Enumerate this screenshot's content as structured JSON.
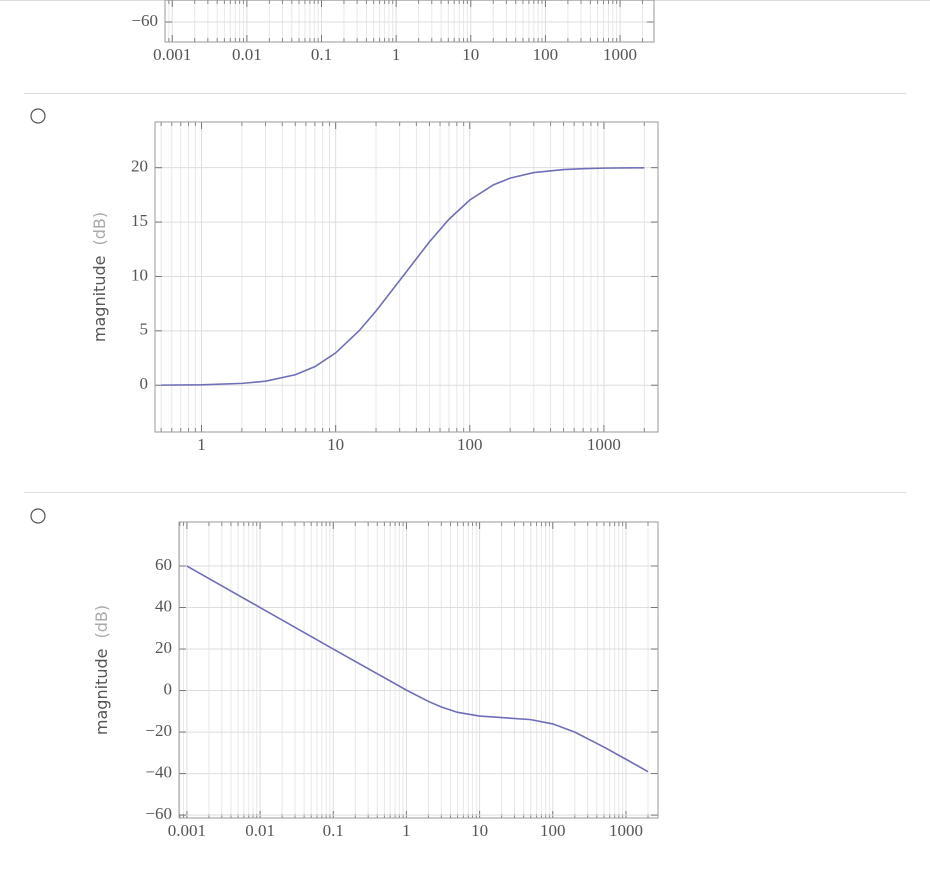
{
  "chart_data": [
    {
      "type": "line",
      "log_x": true,
      "grid": true,
      "color": "#6f6fb8",
      "xlim": [
        0.0008,
        2850
      ],
      "xticks": [
        0.001,
        0.01,
        0.1,
        1,
        10,
        100,
        1000
      ],
      "ylim": [
        -70,
        -49
      ],
      "yticks": [
        {
          "value": -60,
          "label": "−60"
        }
      ]
    },
    {
      "type": "line",
      "log_x": true,
      "grid": true,
      "ylabel": "magnitude",
      "yunit": "(dB)",
      "xlim": [
        0.45,
        2530
      ],
      "xticks": [
        1,
        10,
        100,
        1000
      ],
      "ylim": [
        -4.3,
        24.2
      ],
      "yticks": [
        0,
        5,
        10,
        15,
        20
      ],
      "x": [
        0.5,
        1,
        2,
        3,
        5,
        7,
        10,
        15,
        20,
        30,
        50,
        70,
        100,
        150,
        200,
        300,
        500,
        700,
        1000,
        2000
      ],
      "series": [
        {
          "color": "#6f6fb8",
          "values": [
            0.01,
            0.04,
            0.17,
            0.37,
            0.96,
            1.71,
            2.97,
            5.02,
            6.82,
            9.63,
            13.18,
            15.26,
            17.03,
            18.42,
            19.04,
            19.55,
            19.83,
            19.91,
            19.96,
            19.99
          ]
        }
      ]
    },
    {
      "type": "line",
      "log_x": true,
      "grid": true,
      "ylabel": "magnitude",
      "yunit": "(dB)",
      "xlim": [
        0.00078,
        2740
      ],
      "xticks": [
        0.001,
        0.01,
        0.1,
        1,
        10,
        100,
        1000
      ],
      "ylim": [
        -61.4,
        81.2
      ],
      "yticks": [
        {
          "value": -60,
          "label": "−60"
        },
        {
          "value": -40,
          "label": "−40"
        },
        {
          "value": -20,
          "label": "−20"
        },
        0,
        20,
        40,
        60
      ],
      "x": [
        0.001,
        0.01,
        0.1,
        1,
        2,
        3,
        5,
        10,
        20,
        50,
        100,
        200,
        500,
        1000,
        2000
      ],
      "series": [
        {
          "color": "#6f6fb8",
          "values": [
            60,
            40,
            20,
            0.21,
            -5.24,
            -7.94,
            -10.5,
            -12.3,
            -13.02,
            -14.0,
            -16.07,
            -20.05,
            -27.21,
            -33.1,
            -39.09
          ]
        }
      ]
    }
  ]
}
